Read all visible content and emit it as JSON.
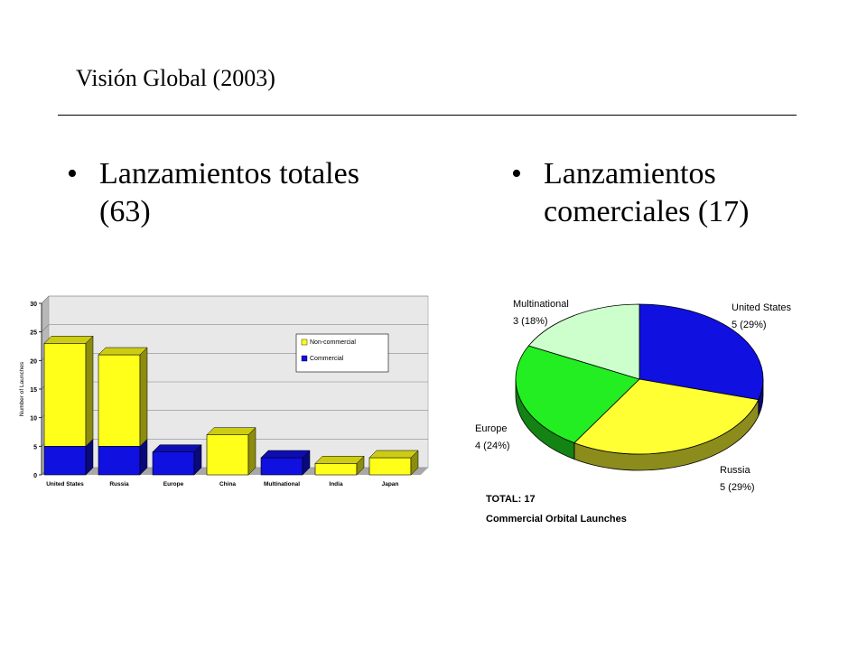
{
  "slide": {
    "title": "Visión Global (2003)",
    "bullets": [
      {
        "marker": "•",
        "text": "Lanzamientos totales (63)"
      },
      {
        "marker": "•",
        "text": "Lanzamientos comerciales (17)"
      }
    ]
  },
  "chart_data": [
    {
      "type": "bar",
      "stacked": true,
      "categories": [
        "United States",
        "Russia",
        "Europe",
        "China",
        "Multinational",
        "India",
        "Japan"
      ],
      "series": [
        {
          "name": "Commercial",
          "values": [
            5,
            5,
            4,
            0,
            3,
            0,
            0
          ],
          "color": "#1010e0"
        },
        {
          "name": "Non-commercial",
          "values": [
            18,
            16,
            0,
            7,
            0,
            2,
            3
          ],
          "color": "#ffff1a"
        }
      ],
      "ylabel": "Number of Launches",
      "yticks": [
        0,
        5,
        10,
        15,
        20,
        25,
        30
      ],
      "ylim": [
        0,
        30
      ],
      "grid": true,
      "legend": "top-right"
    },
    {
      "type": "pie",
      "slices": [
        {
          "label": "United States",
          "value_text": "5 (29%)",
          "value": 5,
          "color": "#1010e0"
        },
        {
          "label": "Russia",
          "value_text": "5 (29%)",
          "value": 5,
          "color": "#ffff33"
        },
        {
          "label": "Europe",
          "value_text": "4 (24%)",
          "value": 4,
          "color": "#22ee22"
        },
        {
          "label": "Multinational",
          "value_text": "3 (18%)",
          "value": 3,
          "color": "#ccffcc"
        }
      ],
      "total_label": "TOTAL: 17",
      "caption": "Commercial Orbital Launches"
    }
  ]
}
